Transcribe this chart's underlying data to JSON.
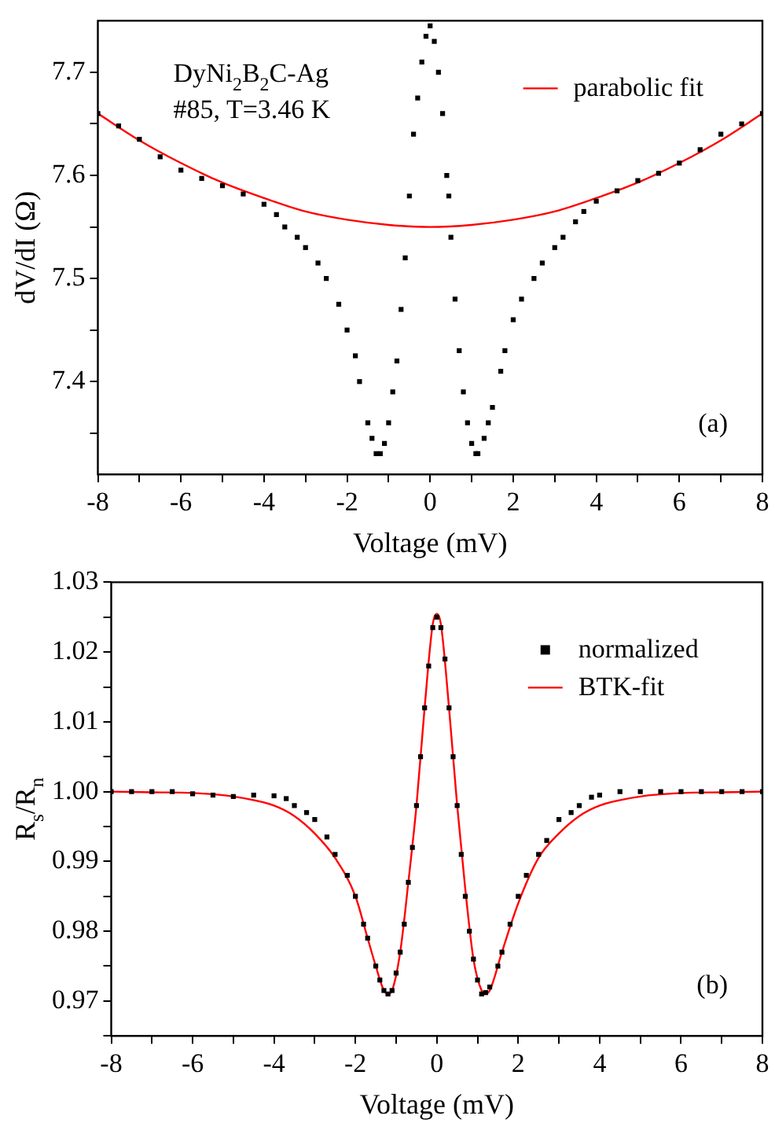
{
  "chart_data": [
    {
      "type": "scatter",
      "xlabel": "Voltage (mV)",
      "ylabel": "dV/dI (Ω)",
      "xlim": [
        -8,
        8
      ],
      "ylim": [
        7.31,
        7.75
      ],
      "xticks": [
        -8,
        {
          "value": -7,
          "label": null
        },
        -6,
        {
          "value": -5,
          "label": null
        },
        -4,
        {
          "value": -3,
          "label": null
        },
        -2,
        {
          "value": -1,
          "label": null
        },
        0,
        {
          "value": 1,
          "label": null
        },
        2,
        {
          "value": 3,
          "label": null
        },
        4,
        {
          "value": 5,
          "label": null
        },
        6,
        {
          "value": 7,
          "label": null
        },
        8
      ],
      "yticks": [
        {
          "value": 7.35,
          "label": null
        },
        7.4,
        {
          "value": 7.45,
          "label": null
        },
        7.5,
        {
          "value": 7.55,
          "label": null
        },
        7.6,
        {
          "value": 7.65,
          "label": null
        },
        7.7
      ],
      "grid": false,
      "legend": "top right",
      "annotations": [
        "DyNi$_{2}$B$_{2}$C-Ag",
        "#85, T=3.46 K",
        "(a)"
      ],
      "series": [
        {
          "marker": "square",
          "color": "#000000",
          "x": [
            -8,
            -7.5,
            -7,
            -6.5,
            -6,
            -5.5,
            -5,
            -4.5,
            -4,
            -3.7,
            -3.5,
            -3.2,
            -3,
            -2.7,
            -2.5,
            -2.2,
            -2,
            -1.8,
            -1.7,
            -1.5,
            -1.4,
            -1.3,
            -1.2,
            -1.1,
            -1,
            -0.9,
            -0.8,
            -0.7,
            -0.6,
            -0.5,
            -0.4,
            -0.3,
            -0.2,
            -0.1,
            0,
            0.1,
            0.2,
            0.3,
            0.4,
            0.45,
            0.5,
            0.6,
            0.7,
            0.8,
            0.9,
            1,
            1.1,
            1.15,
            1.3,
            1.4,
            1.5,
            1.7,
            1.8,
            2,
            2.2,
            2.5,
            2.7,
            3,
            3.2,
            3.5,
            3.7,
            4,
            4.5,
            5,
            5.5,
            6,
            6.5,
            7,
            7.5,
            8
          ],
          "values": [
            7.66,
            7.648,
            7.635,
            7.618,
            7.605,
            7.597,
            7.59,
            7.582,
            7.572,
            7.562,
            7.55,
            7.54,
            7.53,
            7.515,
            7.5,
            7.475,
            7.45,
            7.425,
            7.4,
            7.36,
            7.345,
            7.33,
            7.33,
            7.34,
            7.36,
            7.39,
            7.42,
            7.47,
            7.52,
            7.58,
            7.64,
            7.675,
            7.71,
            7.735,
            7.745,
            7.73,
            7.7,
            7.66,
            7.6,
            7.58,
            7.54,
            7.48,
            7.43,
            7.39,
            7.36,
            7.34,
            7.33,
            7.33,
            7.345,
            7.36,
            7.375,
            7.41,
            7.43,
            7.46,
            7.48,
            7.5,
            7.515,
            7.53,
            7.54,
            7.555,
            7.565,
            7.575,
            7.585,
            7.595,
            7.602,
            7.612,
            7.625,
            7.64,
            7.65,
            7.66
          ]
        },
        {
          "type": "line",
          "marker": "none",
          "name": "parabolic fit",
          "color": "#ff0000",
          "x": [
            -8,
            -7,
            -6,
            -5,
            -4,
            -3,
            -2,
            -1,
            0,
            1,
            2,
            3,
            4,
            5,
            6,
            7,
            8
          ],
          "values": [
            7.66,
            7.634,
            7.612,
            7.593,
            7.578,
            7.565,
            7.557,
            7.552,
            7.55,
            7.552,
            7.557,
            7.565,
            7.578,
            7.593,
            7.612,
            7.634,
            7.66
          ]
        }
      ]
    },
    {
      "type": "scatter",
      "xlabel": "Voltage (mV)",
      "ylabel": "R$_{s}$/R$_{n}$",
      "xlim": [
        -8,
        8
      ],
      "ylim": [
        0.965,
        1.03
      ],
      "xticks": [
        -8,
        {
          "value": -7,
          "label": null
        },
        -6,
        {
          "value": -5,
          "label": null
        },
        -4,
        {
          "value": -3,
          "label": null
        },
        -2,
        {
          "value": -1,
          "label": null
        },
        0,
        {
          "value": 1,
          "label": null
        },
        2,
        {
          "value": 3,
          "label": null
        },
        4,
        {
          "value": 5,
          "label": null
        },
        6,
        {
          "value": 7,
          "label": null
        },
        8
      ],
      "yticks": [
        {
          "value": 0.965,
          "label": null
        },
        0.97,
        {
          "value": 0.975,
          "label": null
        },
        0.98,
        {
          "value": 0.985,
          "label": null
        },
        0.99,
        {
          "value": 0.995,
          "label": null
        },
        {
          "value": 1.0,
          "label": "1.00"
        },
        {
          "value": 1.005,
          "label": null
        },
        1.01,
        {
          "value": 1.015,
          "label": null
        },
        1.02,
        {
          "value": 1.025,
          "label": null
        },
        1.03
      ],
      "grid": false,
      "legend": "top right",
      "annotations": [
        "(b)"
      ],
      "series": [
        {
          "marker": "square",
          "name": "normalized",
          "color": "#000000",
          "x": [
            -8,
            -7.5,
            -7,
            -6.5,
            -6,
            -5.5,
            -5,
            -4.5,
            -4,
            -3.7,
            -3.5,
            -3.2,
            -3,
            -2.7,
            -2.5,
            -2.2,
            -2,
            -1.8,
            -1.7,
            -1.5,
            -1.4,
            -1.3,
            -1.2,
            -1.1,
            -1,
            -0.9,
            -0.8,
            -0.7,
            -0.6,
            -0.5,
            -0.4,
            -0.3,
            -0.2,
            -0.1,
            0,
            0.1,
            0.2,
            0.3,
            0.4,
            0.5,
            0.6,
            0.7,
            0.8,
            0.9,
            1,
            1.1,
            1.2,
            1.3,
            1.5,
            1.6,
            1.8,
            2,
            2.2,
            2.5,
            2.7,
            3,
            3.3,
            3.5,
            3.8,
            4,
            4.5,
            5,
            5.5,
            6,
            6.5,
            7,
            7.5,
            8
          ],
          "values": [
            1.0,
            1.0,
            1.0,
            1.0,
            0.9997,
            0.9995,
            0.9993,
            0.9995,
            0.9994,
            0.999,
            0.998,
            0.997,
            0.996,
            0.9935,
            0.991,
            0.988,
            0.985,
            0.981,
            0.979,
            0.975,
            0.973,
            0.9715,
            0.971,
            0.9715,
            0.974,
            0.977,
            0.981,
            0.987,
            0.992,
            0.998,
            1.005,
            1.012,
            1.018,
            1.0235,
            1.025,
            1.0235,
            1.019,
            1.012,
            1.005,
            0.998,
            0.991,
            0.985,
            0.98,
            0.976,
            0.973,
            0.971,
            0.9712,
            0.972,
            0.975,
            0.977,
            0.981,
            0.985,
            0.988,
            0.991,
            0.993,
            0.996,
            0.997,
            0.998,
            0.9992,
            0.9995,
            1.0,
            1.0,
            1.0,
            1.0,
            1.0,
            1.0,
            1.0,
            1.0
          ]
        },
        {
          "type": "line",
          "marker": "none",
          "name": "BTK-fit",
          "color": "#ff0000",
          "x": [
            -8,
            -7,
            -6,
            -5,
            -4,
            -3.5,
            -3,
            -2.5,
            -2,
            -1.7,
            -1.5,
            -1.3,
            -1.2,
            -1.1,
            -0.9,
            -0.7,
            -0.5,
            -0.3,
            -0.1,
            0,
            0.1,
            0.3,
            0.5,
            0.7,
            0.9,
            1.1,
            1.2,
            1.3,
            1.6,
            2,
            2.5,
            3,
            3.5,
            4,
            5,
            6,
            7,
            8
          ],
          "values": [
            1.0,
            0.9999,
            0.9998,
            0.9993,
            0.998,
            0.9965,
            0.994,
            0.9905,
            0.985,
            0.979,
            0.975,
            0.9715,
            0.971,
            0.9715,
            0.977,
            0.987,
            0.998,
            1.012,
            1.024,
            1.0255,
            1.024,
            1.012,
            0.998,
            0.986,
            0.976,
            0.9715,
            0.971,
            0.9715,
            0.977,
            0.984,
            0.9905,
            0.994,
            0.9965,
            0.998,
            0.9993,
            0.9998,
            0.9999,
            1.0
          ]
        }
      ]
    }
  ]
}
